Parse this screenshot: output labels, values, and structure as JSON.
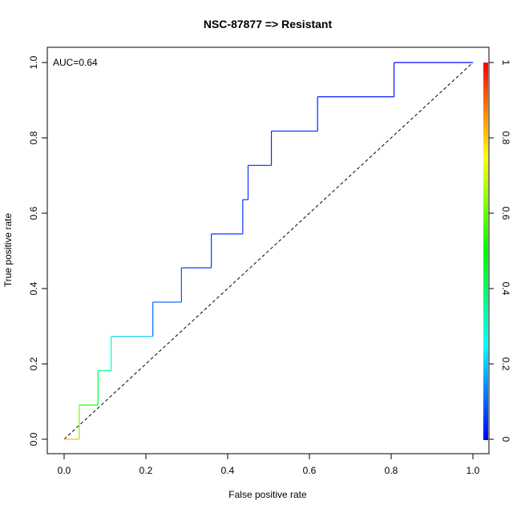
{
  "chart_data": {
    "type": "line",
    "title": "NSC-87877 => Resistant",
    "xlabel": "False positive rate",
    "ylabel": "True positive rate",
    "xlim": [
      0,
      1
    ],
    "ylim": [
      0,
      1
    ],
    "x_ticks": [
      "0.0",
      "0.2",
      "0.4",
      "0.6",
      "0.8",
      "1.0"
    ],
    "y_ticks": [
      "0.0",
      "0.2",
      "0.4",
      "0.6",
      "0.8",
      "1.0"
    ],
    "annotation": "AUC=0.64",
    "grid": false,
    "roc_curve": {
      "x": [
        0,
        0.037,
        0.037,
        0.083,
        0.083,
        0.115,
        0.115,
        0.217,
        0.217,
        0.287,
        0.287,
        0.36,
        0.36,
        0.437,
        0.437,
        0.45,
        0.45,
        0.507,
        0.507,
        0.62,
        0.62,
        0.807,
        0.807,
        1.0
      ],
      "y": [
        0,
        0,
        0.091,
        0.091,
        0.182,
        0.182,
        0.273,
        0.273,
        0.364,
        0.364,
        0.455,
        0.455,
        0.545,
        0.545,
        0.636,
        0.636,
        0.727,
        0.727,
        0.818,
        0.818,
        0.909,
        0.909,
        1.0,
        1.0
      ],
      "color_values": [
        1.0,
        0.62,
        0.62,
        0.45,
        0.45,
        0.3,
        0.3,
        0.1,
        0.1,
        0.08,
        0.08,
        0.06,
        0.06,
        0.05,
        0.05,
        0.05,
        0.05,
        0.04,
        0.04,
        0.03,
        0.03,
        0.02,
        0.02,
        0.0
      ]
    },
    "diagonal": {
      "x": [
        0,
        1
      ],
      "y": [
        0,
        1
      ],
      "style": "dashed",
      "color": "#000000"
    },
    "colorbar": {
      "range": [
        0,
        1
      ],
      "ticks": [
        "0",
        "0.2",
        "0.4",
        "0.6",
        "0.8",
        "1"
      ],
      "colormap": [
        "#0000ff",
        "#00ffff",
        "#00ff00",
        "#ffff00",
        "#ff0000"
      ]
    }
  }
}
